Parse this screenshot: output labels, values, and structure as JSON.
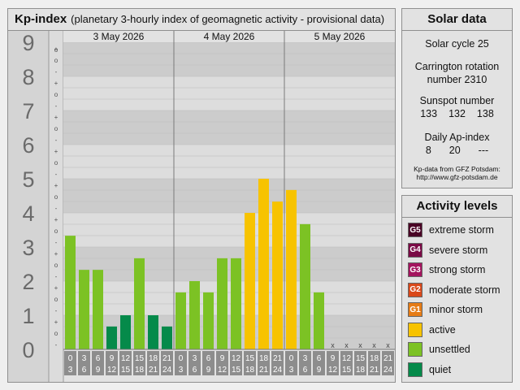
{
  "chart_panel": {
    "title": "Kp-index",
    "subtitle": "(planetary 3-hourly index of geomagnetic activity - provisional data)"
  },
  "chart_data": {
    "type": "bar",
    "title": "Kp-index",
    "subtitle": "(planetary 3-hourly index of geomagnetic activity - provisional data)",
    "ylim": [
      0,
      9
    ],
    "y_ticks": [
      "0",
      "1",
      "2",
      "3",
      "4",
      "5",
      "6",
      "7",
      "8",
      "9"
    ],
    "minor_marks": [
      "-",
      "o",
      "+"
    ],
    "days": [
      "3 May 2026",
      "4 May 2026",
      "5 May 2026"
    ],
    "hour_starts": [
      "0",
      "3",
      "6",
      "9",
      "12",
      "15",
      "18",
      "21"
    ],
    "hour_ends": [
      "3",
      "6",
      "9",
      "12",
      "15",
      "18",
      "21",
      "24"
    ],
    "missing_marker": "x",
    "values": [
      3.33,
      2.33,
      2.33,
      0.67,
      1.0,
      2.67,
      1.0,
      0.67,
      1.67,
      2.0,
      1.67,
      2.67,
      2.67,
      4.0,
      5.0,
      4.33,
      4.67,
      3.67,
      1.67,
      null,
      null,
      null,
      null,
      null
    ],
    "levels": [
      "quiet",
      "quiet",
      "quiet",
      "quiet",
      "unsettled",
      "active",
      "minor storm",
      "moderate storm",
      "strong storm",
      "severe storm",
      "extreme storm"
    ],
    "colors": {
      "quiet": "#058a4a",
      "unsettled": "#7cc224",
      "active": "#f7c300",
      "minor storm": "#e67c16",
      "moderate storm": "#d9481a",
      "strong storm": "#a4145e",
      "severe storm": "#7a0a45",
      "extreme storm": "#4a0325"
    }
  },
  "solar_panel": {
    "title": "Solar data",
    "cycle": "Solar cycle 25",
    "carrington_line1": "Carrington rotation",
    "carrington_line2": "number 2310",
    "sunspot_label": "Sunspot number",
    "sunspot_values": [
      "133",
      "132",
      "138"
    ],
    "ap_label": "Daily Ap-index",
    "ap_values": [
      "8",
      "20",
      "---"
    ],
    "source_line1": "Kp-data from GFZ Potsdam:",
    "source_line2": "http://www.gfz-potsdam.de"
  },
  "activity_panel": {
    "title": "Activity levels",
    "items": [
      {
        "code": "G5",
        "label": "extreme storm",
        "color": "#4a0325"
      },
      {
        "code": "G4",
        "label": "severe storm",
        "color": "#7a0a45"
      },
      {
        "code": "G3",
        "label": "strong storm",
        "color": "#a4145e"
      },
      {
        "code": "G2",
        "label": "moderate storm",
        "color": "#d9481a"
      },
      {
        "code": "G1",
        "label": "minor storm",
        "color": "#e67c16"
      },
      {
        "code": "",
        "label": "active",
        "color": "#f7c300"
      },
      {
        "code": "",
        "label": "unsettled",
        "color": "#7cc224"
      },
      {
        "code": "",
        "label": "quiet",
        "color": "#058a4a"
      }
    ]
  }
}
